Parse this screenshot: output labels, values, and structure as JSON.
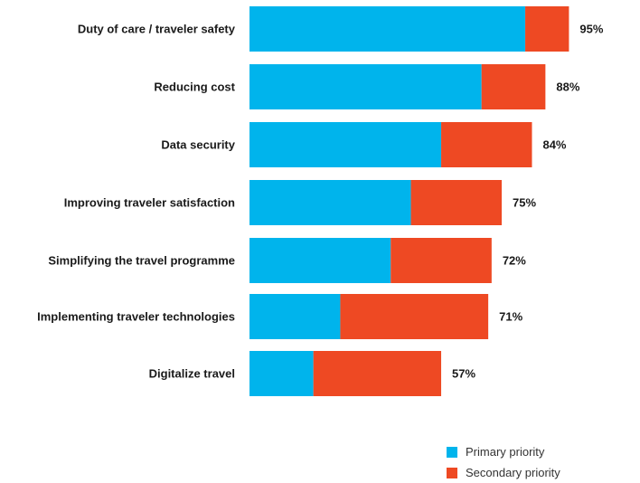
{
  "chart_data": {
    "type": "bar",
    "orientation": "horizontal",
    "stacked": true,
    "categories": [
      "Duty of care / traveler safety",
      "Reducing cost",
      "Data security",
      "Improving traveler satisfaction",
      "Simplifying the travel programme",
      "Implementing traveler technologies",
      "Digitalize travel"
    ],
    "series": [
      {
        "name": "Primary priority",
        "color": "#00b4ec",
        "values": [
          82,
          69,
          57,
          48,
          42,
          27,
          19
        ]
      },
      {
        "name": "Secondary priority",
        "color": "#ee4923",
        "values": [
          13,
          19,
          27,
          27,
          30,
          44,
          38
        ]
      }
    ],
    "totals": [
      "95%",
      "88%",
      "84%",
      "75%",
      "72%",
      "71%",
      "57%"
    ],
    "xlim": [
      0,
      100
    ],
    "grid": false,
    "legend_position": "bottom-right"
  }
}
